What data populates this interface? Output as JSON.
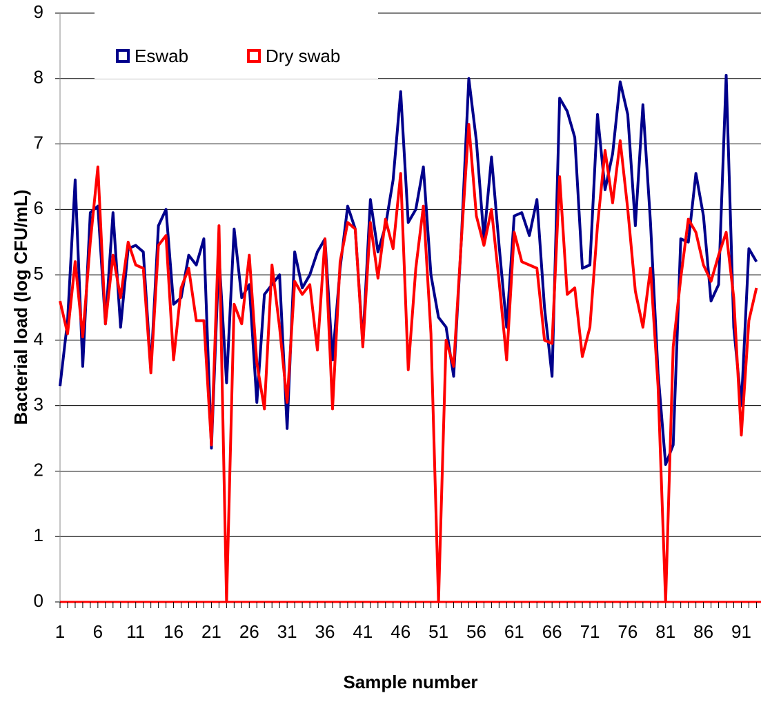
{
  "chart_data": {
    "type": "line",
    "x_label": "Sample number",
    "y_label": "Bacterial load (log CFU/mL)",
    "x": [
      1,
      2,
      3,
      4,
      5,
      6,
      7,
      8,
      9,
      10,
      11,
      12,
      13,
      14,
      15,
      16,
      17,
      18,
      19,
      20,
      21,
      22,
      23,
      24,
      25,
      26,
      27,
      28,
      29,
      30,
      31,
      32,
      33,
      34,
      35,
      36,
      37,
      38,
      39,
      40,
      41,
      42,
      43,
      44,
      45,
      46,
      47,
      48,
      49,
      50,
      51,
      52,
      53,
      54,
      55,
      56,
      57,
      58,
      59,
      60,
      61,
      62,
      63,
      64,
      65,
      66,
      67,
      68,
      69,
      70,
      71,
      72,
      73,
      74,
      75,
      76,
      77,
      78,
      79,
      80,
      81,
      82,
      83,
      84,
      85,
      86,
      87,
      88,
      89,
      90,
      91,
      92,
      93
    ],
    "xlim": [
      1,
      93.6
    ],
    "xticks": [
      1,
      6,
      11,
      16,
      21,
      26,
      31,
      36,
      41,
      46,
      51,
      56,
      61,
      66,
      71,
      76,
      81,
      86,
      91
    ],
    "ylim": [
      0,
      9
    ],
    "yticks": [
      0,
      1,
      2,
      3,
      4,
      5,
      6,
      7,
      8,
      9
    ],
    "grid": true,
    "legend": "top-left",
    "series": [
      {
        "name": "Eswab",
        "color": "#00008b",
        "values": [
          3.3,
          4.3,
          6.45,
          3.6,
          5.95,
          6.05,
          4.25,
          5.95,
          4.2,
          5.4,
          5.45,
          5.35,
          3.55,
          5.75,
          6.0,
          4.55,
          4.65,
          5.3,
          5.15,
          5.55,
          2.35,
          5.3,
          3.35,
          5.7,
          4.65,
          4.85,
          3.05,
          4.7,
          4.85,
          5.0,
          2.65,
          5.35,
          4.8,
          5.0,
          5.35,
          5.55,
          3.7,
          5.1,
          6.05,
          5.7,
          3.95,
          6.15,
          5.35,
          5.75,
          6.45,
          7.8,
          5.8,
          6.0,
          6.65,
          5.0,
          4.35,
          4.2,
          3.45,
          5.5,
          8.0,
          7.05,
          5.55,
          6.8,
          5.45,
          4.2,
          5.9,
          5.95,
          5.6,
          6.15,
          4.5,
          3.45,
          7.7,
          7.5,
          7.1,
          5.1,
          5.15,
          7.45,
          6.3,
          6.85,
          7.95,
          7.45,
          5.75,
          7.6,
          5.8,
          3.5,
          2.1,
          2.4,
          5.55,
          5.5,
          6.55,
          5.9,
          4.6,
          4.85,
          8.05,
          4.2,
          3.0,
          5.4,
          5.2
        ]
      },
      {
        "name": "Dry swab",
        "color": "#ff0000",
        "values": [
          4.6,
          4.1,
          5.2,
          4.05,
          5.5,
          6.65,
          4.25,
          5.3,
          4.65,
          5.5,
          5.15,
          5.1,
          3.5,
          5.45,
          5.6,
          3.7,
          4.8,
          5.1,
          4.3,
          4.3,
          2.4,
          5.75,
          0,
          4.55,
          4.25,
          5.3,
          3.65,
          2.95,
          5.15,
          4.2,
          3.05,
          4.9,
          4.7,
          4.85,
          3.85,
          5.55,
          2.95,
          5.2,
          5.8,
          5.7,
          3.9,
          5.8,
          4.95,
          5.85,
          5.4,
          6.55,
          3.55,
          5.1,
          6.05,
          4.1,
          0,
          4.0,
          3.6,
          5.5,
          7.3,
          5.9,
          5.45,
          6.0,
          4.9,
          3.7,
          5.65,
          5.2,
          5.15,
          5.1,
          4.0,
          3.95,
          6.5,
          4.7,
          4.8,
          3.75,
          4.2,
          5.75,
          6.9,
          6.1,
          7.05,
          6.0,
          4.75,
          4.2,
          5.1,
          3.3,
          0,
          3.9,
          4.95,
          5.85,
          5.65,
          5.15,
          4.9,
          5.3,
          5.65,
          4.65,
          2.55,
          4.3,
          4.8
        ]
      }
    ]
  }
}
